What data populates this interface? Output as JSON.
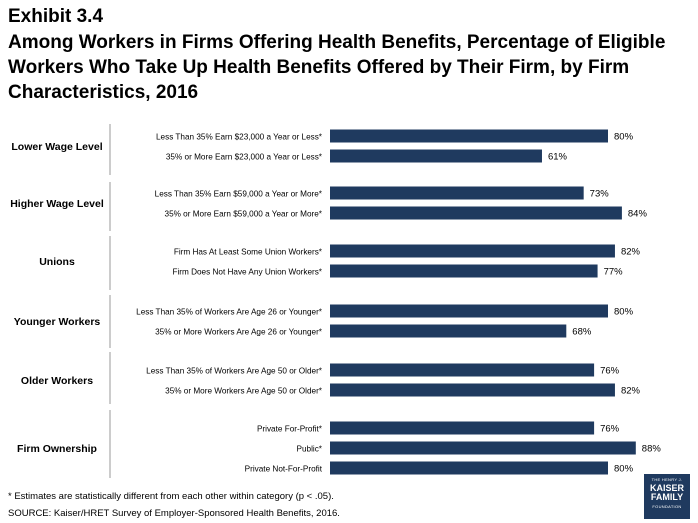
{
  "exhibit_label": "Exhibit 3.4",
  "title": "Among Workers in Firms Offering Health Benefits, Percentage of Eligible Workers Who Take Up Health Benefits Offered by Their Firm, by Firm Characteristics, 2016",
  "footnote": "* Estimates are statistically different from each other within category (p < .05).",
  "source": "SOURCE: Kaiser/HRET Survey of Employer-Sponsored Health Benefits, 2016.",
  "logo": {
    "line1": "THE HENRY J.",
    "line2": "KAISER",
    "line3": "FAMILY",
    "line4": "FOUNDATION"
  },
  "colors": {
    "bar": "#1f3a5f",
    "divider": "#999999"
  },
  "chart_data": {
    "type": "bar",
    "orientation": "horizontal",
    "value_suffix": "%",
    "xlim": [
      0,
      100
    ],
    "groups": [
      {
        "name": "Lower Wage Level",
        "items": [
          {
            "label": "Less Than 35% Earn $23,000 a Year or Less*",
            "value": 80
          },
          {
            "label": "35% or More Earn $23,000 a Year or Less*",
            "value": 61
          }
        ]
      },
      {
        "name": "Higher Wage Level",
        "items": [
          {
            "label": "Less Than 35% Earn $59,000 a Year or More*",
            "value": 73
          },
          {
            "label": "35% or More Earn $59,000 a Year or More*",
            "value": 84
          }
        ]
      },
      {
        "name": "Unions",
        "items": [
          {
            "label": "Firm Has At Least Some Union Workers*",
            "value": 82
          },
          {
            "label": "Firm Does Not Have Any Union Workers*",
            "value": 77
          }
        ]
      },
      {
        "name": "Younger Workers",
        "items": [
          {
            "label": "Less Than 35% of Workers Are Age 26 or Younger*",
            "value": 80
          },
          {
            "label": "35% or More Workers Are Age 26 or Younger*",
            "value": 68
          }
        ]
      },
      {
        "name": "Older Workers",
        "items": [
          {
            "label": "Less Than 35% of Workers Are Age 50 or Older*",
            "value": 76
          },
          {
            "label": "35% or More Workers Are Age 50 or Older*",
            "value": 82
          }
        ]
      },
      {
        "name": "Firm Ownership",
        "items": [
          {
            "label": "Private For-Profit*",
            "value": 76
          },
          {
            "label": "Public*",
            "value": 88
          },
          {
            "label": "Private Not-For-Profit",
            "value": 80
          }
        ]
      }
    ]
  }
}
